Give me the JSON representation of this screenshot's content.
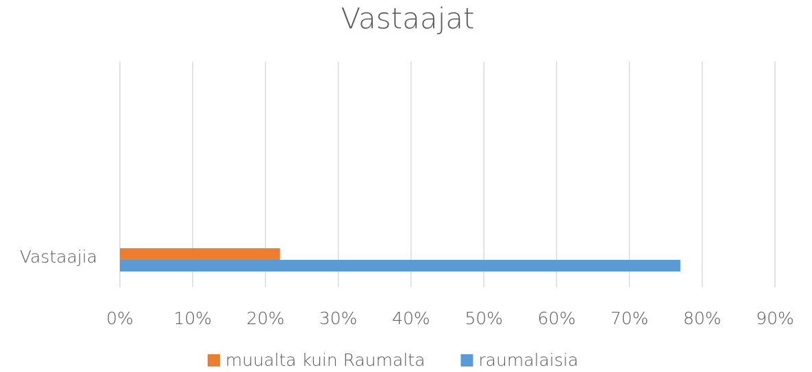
{
  "chart_data": {
    "type": "barh",
    "title": "Vastaajat",
    "categories": [
      "Vastaajia"
    ],
    "series": [
      {
        "name": "muualta kuin Raumalta",
        "color": "#ed7d31",
        "values": [
          22
        ]
      },
      {
        "name": "raumalaisia",
        "color": "#5b9bd5",
        "values": [
          77
        ]
      }
    ],
    "xlim": [
      0,
      90
    ],
    "xticks": [
      {
        "value": 0,
        "label": "0%"
      },
      {
        "value": 10,
        "label": "10%"
      },
      {
        "value": 20,
        "label": "20%"
      },
      {
        "value": 30,
        "label": "30%"
      },
      {
        "value": 40,
        "label": "40%"
      },
      {
        "value": 50,
        "label": "50%"
      },
      {
        "value": 60,
        "label": "60%"
      },
      {
        "value": 70,
        "label": "70%"
      },
      {
        "value": 80,
        "label": "80%"
      },
      {
        "value": 90,
        "label": "90%"
      }
    ],
    "grid": true,
    "legend": "bottom"
  }
}
